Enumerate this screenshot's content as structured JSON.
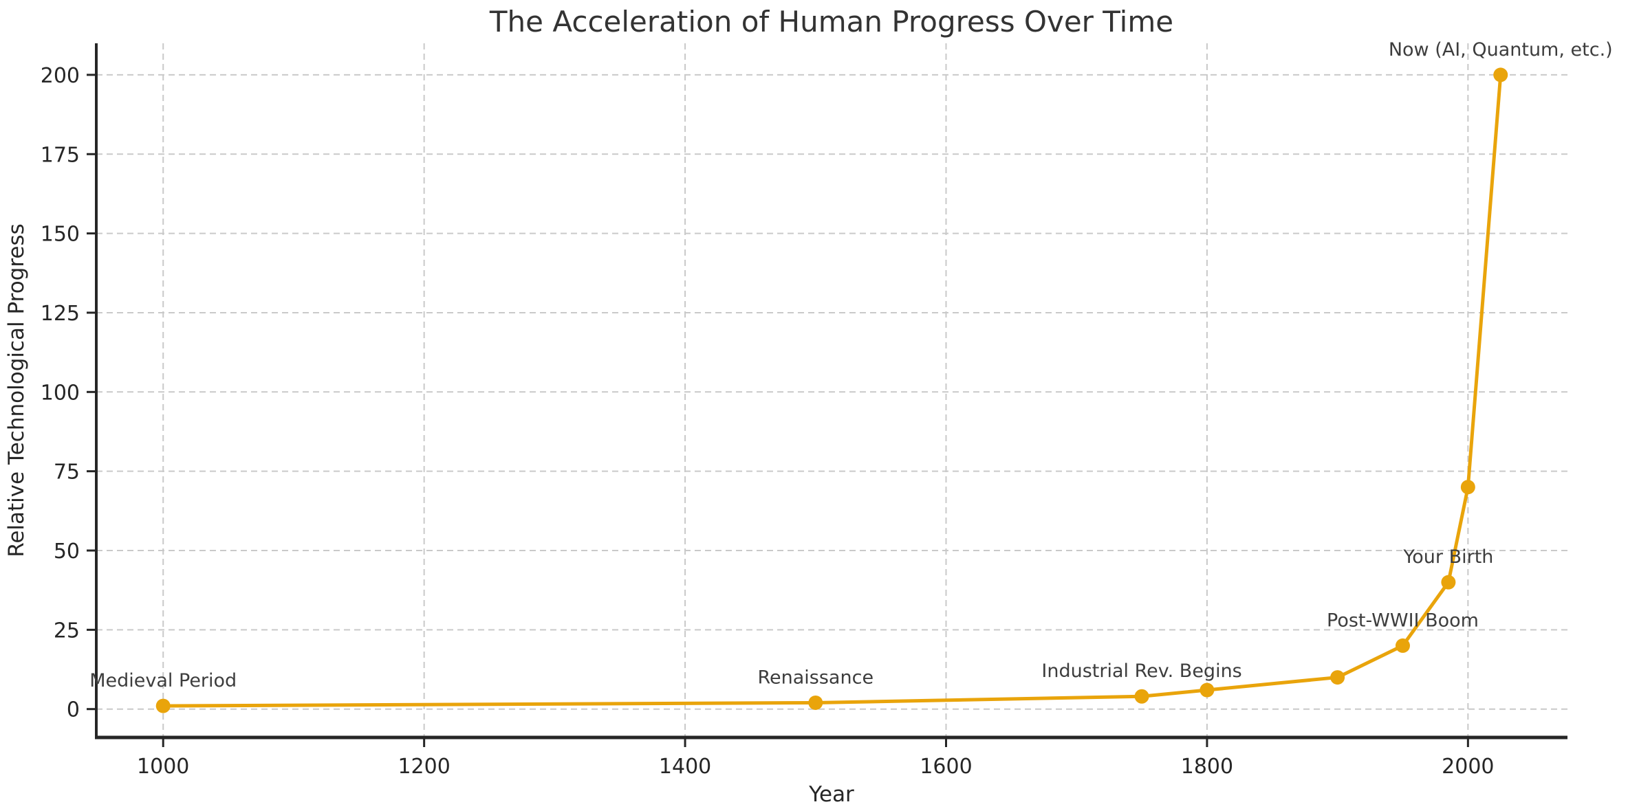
{
  "figure": {
    "title": "The Acceleration of Human Progress Over Time",
    "background_color": "#ffffff"
  },
  "chart_data": {
    "type": "line",
    "title": "The Acceleration of Human Progress Over Time",
    "xlabel": "Year",
    "ylabel": "Relative Technological Progress",
    "x": [
      1000,
      1500,
      1750,
      1800,
      1900,
      1950,
      1985,
      2000,
      2025
    ],
    "y": [
      1,
      2,
      4,
      6,
      10,
      20,
      40,
      70,
      200
    ],
    "xlim": [
      948.75,
      2076.25
    ],
    "ylim": [
      -8.95,
      209.95
    ],
    "xticks": [
      "1000",
      "1200",
      "1400",
      "1600",
      "1800",
      "2000"
    ],
    "xtick_values": [
      1000,
      1200,
      1400,
      1600,
      1800,
      2000
    ],
    "yticks": [
      "0",
      "25",
      "50",
      "75",
      "100",
      "125",
      "150",
      "175",
      "200"
    ],
    "ytick_values": [
      0,
      25,
      50,
      75,
      100,
      125,
      150,
      175,
      200
    ],
    "grid": true,
    "grid_style": "dashed",
    "legend_position": "none",
    "marker": "circle",
    "annotations": [
      {
        "label": "Medieval Period",
        "x": 1000,
        "y": 1
      },
      {
        "label": "Renaissance",
        "x": 1500,
        "y": 2
      },
      {
        "label": "Industrial Rev. Begins",
        "x": 1750,
        "y": 4
      },
      {
        "label": "Post-WWII Boom",
        "x": 1950,
        "y": 20
      },
      {
        "label": "Your Birth",
        "x": 1985,
        "y": 40
      },
      {
        "label": "Now (AI, Quantum, etc.)",
        "x": 2025,
        "y": 200
      }
    ],
    "colors": {
      "line": "#E9A40B",
      "marker": "#E9A40B",
      "grid": "#c9c9c9",
      "axis": "#262626",
      "title_text": "#333333",
      "annotation_text": "#3d3d3d"
    }
  }
}
